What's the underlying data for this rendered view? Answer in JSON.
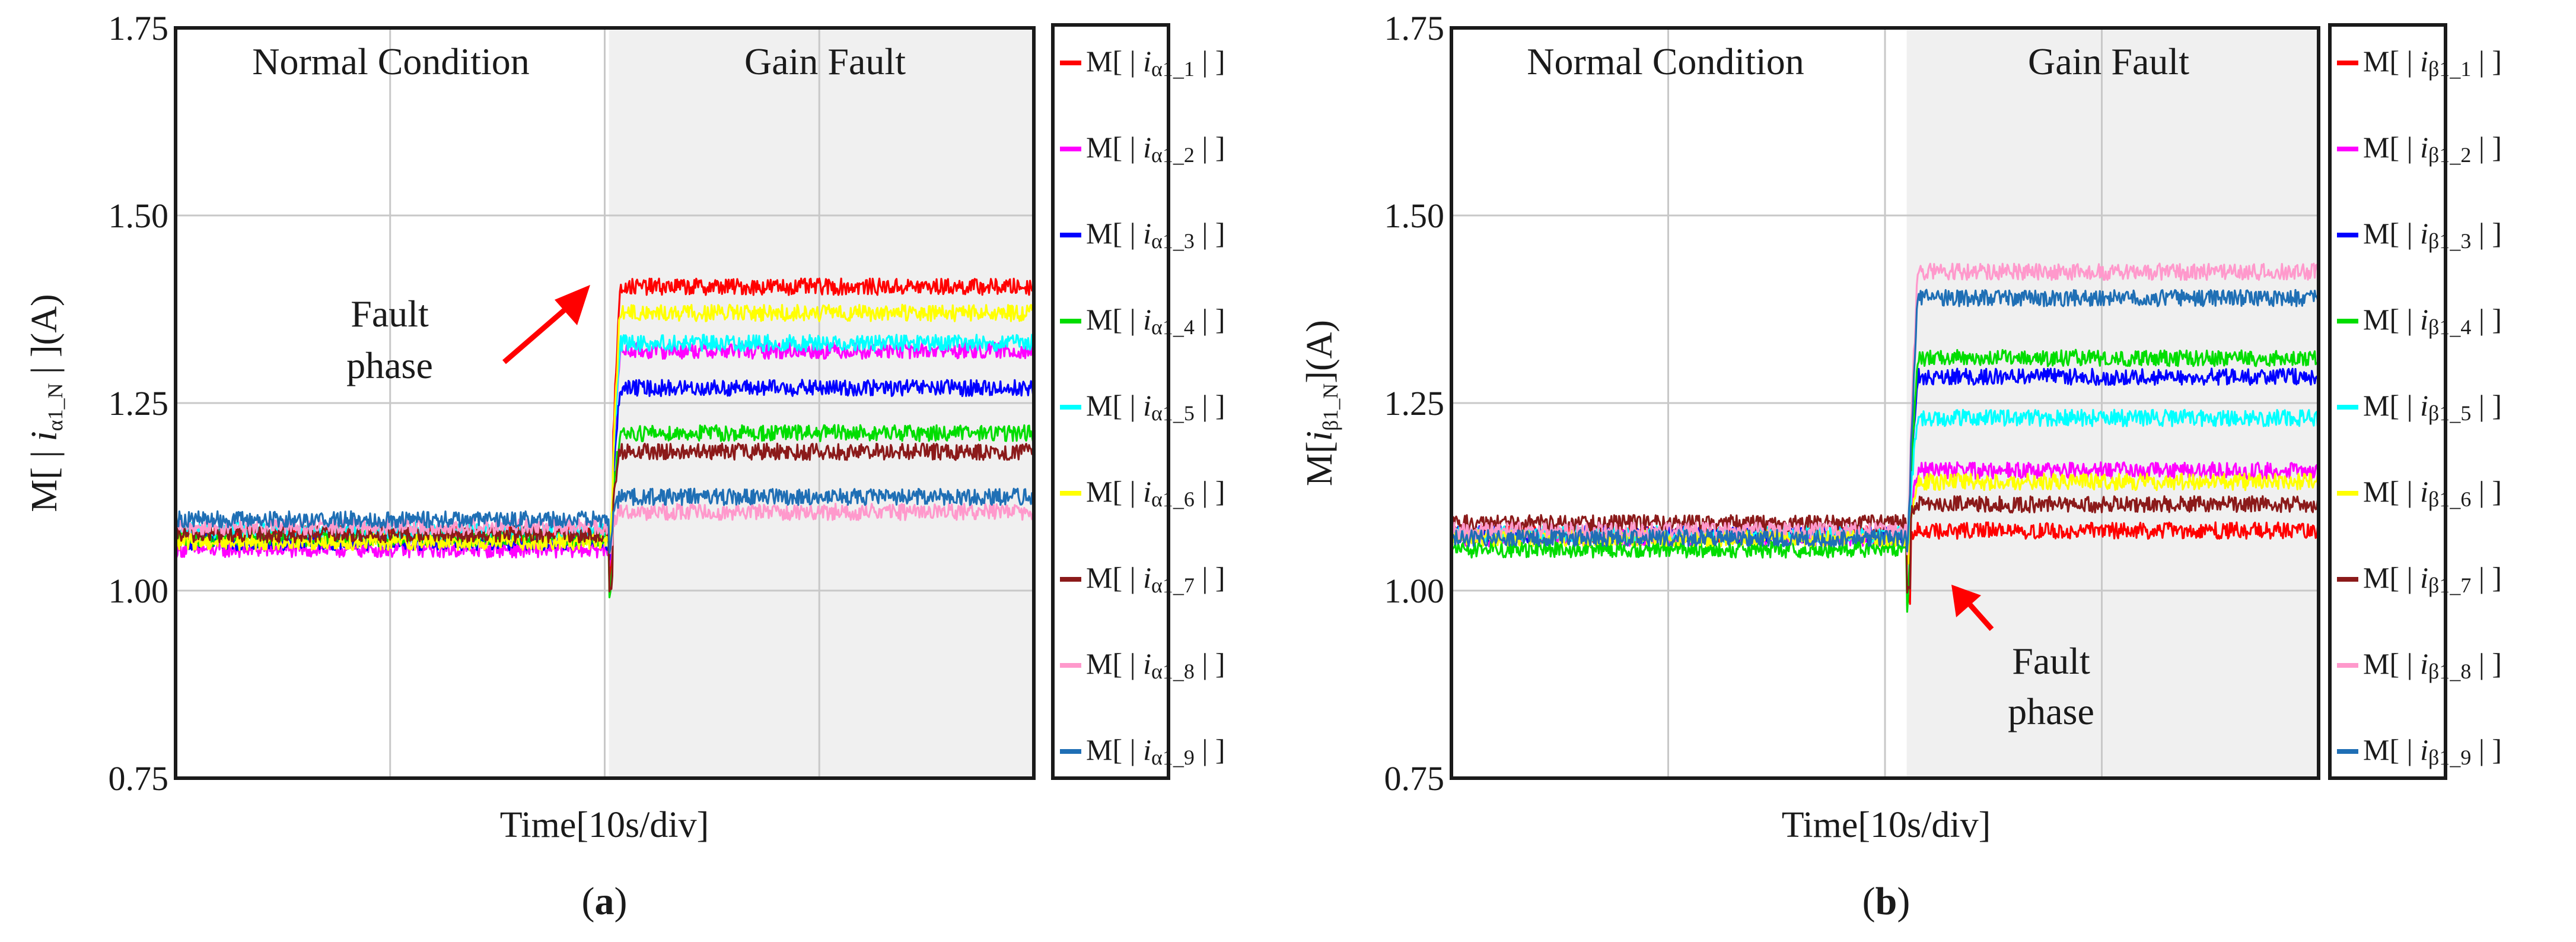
{
  "chart_data": [
    {
      "type": "line",
      "panel": "a",
      "caption": {
        "open": "(",
        "letter": "a",
        "close": ")"
      },
      "xlabel": "Time[10s/div]",
      "ylabel": {
        "prefix": "M[ | ",
        "sym": "i",
        "sub": "α1_N",
        "suffix": " | ](A)"
      },
      "ylim": [
        0.75,
        1.75
      ],
      "yticks": [
        "0.75",
        "1.00",
        "1.25",
        "1.50",
        "1.75"
      ],
      "x_divisions": 4,
      "fault_start": 2.02,
      "regions": {
        "normal": "Normal Condition",
        "fault": "Gain Fault"
      },
      "annotation": {
        "line1": "Fault",
        "line2": "phase"
      },
      "legend_prefix": "M[ | ",
      "legend_sym": "i",
      "legend_suffix": " | ]",
      "series": [
        {
          "name": "α1_1",
          "color": "#ff0000",
          "before": 1.075,
          "after": 1.405
        },
        {
          "name": "α1_2",
          "color": "#ff00ff",
          "before": 1.055,
          "after": 1.32
        },
        {
          "name": "α1_3",
          "color": "#0000ff",
          "before": 1.065,
          "after": 1.27
        },
        {
          "name": "α1_4",
          "color": "#00dd00",
          "before": 1.07,
          "after": 1.21
        },
        {
          "name": "α1_5",
          "color": "#00ffff",
          "before": 1.08,
          "after": 1.33
        },
        {
          "name": "α1_6",
          "color": "#ffff00",
          "before": 1.065,
          "after": 1.37
        },
        {
          "name": "α1_7",
          "color": "#8b1a1a",
          "before": 1.075,
          "after": 1.185
        },
        {
          "name": "α1_8",
          "color": "#ff99cc",
          "before": 1.085,
          "after": 1.105
        },
        {
          "name": "α1_9",
          "color": "#1f6fb5",
          "before": 1.095,
          "after": 1.125
        }
      ]
    },
    {
      "type": "line",
      "panel": "b",
      "caption": {
        "open": "(",
        "letter": "b",
        "close": ")"
      },
      "xlabel": "Time[10s/div]",
      "ylabel": {
        "prefix": "M[",
        "sym": "i",
        "sub": "β1_N",
        "suffix": "](A)"
      },
      "ylim": [
        0.75,
        1.75
      ],
      "yticks": [
        "0.75",
        "1.00",
        "1.25",
        "1.50",
        "1.75"
      ],
      "x_divisions": 4,
      "fault_start": 2.1,
      "regions": {
        "normal": "Normal Condition",
        "fault": "Gain Fault"
      },
      "annotation": {
        "line1": "Fault",
        "line2": "phase"
      },
      "legend_prefix": "M[ | ",
      "legend_sym": "i",
      "legend_suffix": " | ]",
      "series": [
        {
          "name": "β1_1",
          "color": "#ff0000",
          "before": 1.075,
          "after": 1.08
        },
        {
          "name": "β1_2",
          "color": "#ff00ff",
          "before": 1.07,
          "after": 1.16
        },
        {
          "name": "β1_3",
          "color": "#0000ff",
          "before": 1.075,
          "after": 1.285
        },
        {
          "name": "β1_4",
          "color": "#00dd00",
          "before": 1.055,
          "after": 1.31
        },
        {
          "name": "β1_5",
          "color": "#00ffff",
          "before": 1.075,
          "after": 1.23
        },
        {
          "name": "β1_6",
          "color": "#ffff00",
          "before": 1.07,
          "after": 1.145
        },
        {
          "name": "β1_7",
          "color": "#8b1a1a",
          "before": 1.09,
          "after": 1.115
        },
        {
          "name": "β1_8",
          "color": "#ff99cc",
          "before": 1.08,
          "after": 1.425
        },
        {
          "name": "β1_9",
          "color": "#1f6fb5",
          "before": 1.07,
          "after": 1.39
        }
      ]
    }
  ]
}
